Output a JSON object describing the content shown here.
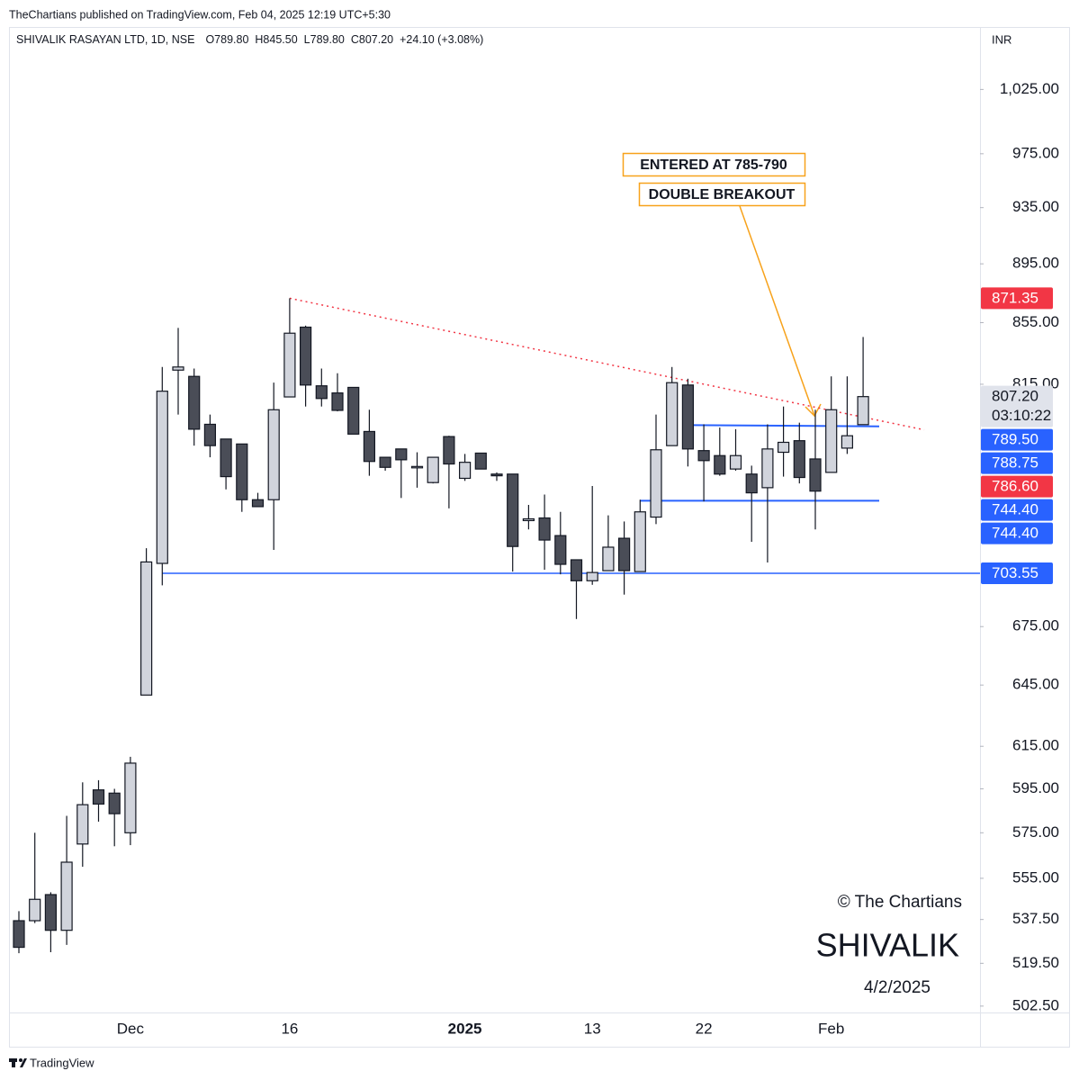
{
  "publisher": "TheChartians published on TradingView.com, Feb 04, 2025 12:19 UTC+5:30",
  "footer_brand": "TradingView",
  "chart_data": {
    "type": "candlestick",
    "title": "SHIVALIK RASAYAN LTD, 1D, NSE",
    "ohlc_header": [
      "O789.80",
      "H845.50",
      "L789.80",
      "C807.20",
      "+24.10 (+3.08%)"
    ],
    "currency": "INR",
    "log_scale": true,
    "categories": [
      null,
      null,
      null,
      null,
      null,
      null,
      null,
      "Dec",
      null,
      null,
      null,
      null,
      null,
      null,
      null,
      null,
      null,
      "16",
      null,
      null,
      null,
      null,
      null,
      null,
      null,
      null,
      null,
      null,
      "2025",
      null,
      null,
      null,
      null,
      null,
      null,
      null,
      "13",
      null,
      null,
      null,
      null,
      null,
      null,
      "22",
      null,
      null,
      null,
      null,
      null,
      null,
      null,
      "Feb",
      null,
      null
    ],
    "open": [
      537,
      537,
      548,
      533,
      570,
      594.5,
      593,
      575,
      640,
      709,
      824,
      820,
      790,
      781,
      778,
      745,
      745,
      807,
      852,
      814,
      809.5,
      813,
      785.6,
      770,
      775,
      764.5,
      755,
      782.5,
      757.5,
      772.5,
      760,
      760,
      733,
      734.5,
      724.5,
      711,
      699.5,
      705,
      723,
      704.5,
      735,
      777,
      814.5,
      774,
      771,
      763,
      760,
      752,
      773,
      780,
      769,
      761,
      775.5,
      789.8
    ],
    "high": [
      541,
      575,
      549,
      582.6,
      598,
      599,
      595,
      610,
      717.4,
      826,
      851.5,
      825,
      796,
      781,
      778,
      749,
      816,
      871.35,
      853,
      825,
      822,
      813,
      799,
      770,
      775,
      773,
      770,
      783,
      772,
      772.5,
      761,
      760,
      742,
      748,
      738,
      711,
      753,
      736,
      732.5,
      745,
      796,
      826,
      818.5,
      790,
      788,
      787,
      765,
      790,
      801,
      791,
      799,
      820,
      820,
      845.5
    ],
    "low": [
      523.6,
      536,
      524,
      527,
      560,
      580,
      569,
      569.5,
      640,
      697,
      796,
      777,
      770,
      751,
      738,
      741,
      716.5,
      807,
      801,
      801,
      798,
      784,
      759,
      762,
      746,
      752,
      754.5,
      740,
      756,
      763,
      756,
      704.5,
      728,
      705.5,
      703,
      679,
      697.3,
      705,
      692,
      704.5,
      731,
      777,
      764.5,
      744,
      759,
      762,
      721,
      709.5,
      758.5,
      754.5,
      728,
      761,
      772,
      789.8
    ],
    "close": [
      526,
      546,
      533,
      562,
      587.7,
      588,
      583.6,
      607,
      709.8,
      810.6,
      826,
      787,
      777,
      758.5,
      745,
      741,
      799,
      848,
      814.5,
      806,
      798.6,
      784,
      767.5,
      764,
      768.5,
      764.5,
      770,
      766,
      767,
      763,
      759,
      718.4,
      734,
      722,
      708.5,
      699.5,
      704,
      718,
      705,
      738,
      774.5,
      816,
      775,
      768,
      760,
      771,
      749,
      775,
      779,
      758,
      750,
      799,
      783,
      807.2
    ],
    "up_color": "#d1d4dc",
    "down_color": "#4a4d57",
    "ylim": [
      500,
      1076
    ],
    "yticks": [
      {
        "value": 1025,
        "label": "1,025.00"
      },
      {
        "value": 975,
        "label": "975.00"
      },
      {
        "value": 935,
        "label": "935.00"
      },
      {
        "value": 895,
        "label": "895.00"
      },
      {
        "value": 855,
        "label": "855.00"
      },
      {
        "value": 815,
        "label": "815.00"
      },
      {
        "value": 675,
        "label": "675.00"
      },
      {
        "value": 645,
        "label": "645.00"
      },
      {
        "value": 615,
        "label": "615.00"
      },
      {
        "value": 595,
        "label": "595.00"
      },
      {
        "value": 575,
        "label": "575.00"
      },
      {
        "value": 555,
        "label": "555.00"
      },
      {
        "value": 537.5,
        "label": "537.50"
      },
      {
        "value": 519.5,
        "label": "519.50"
      },
      {
        "value": 502.5,
        "label": "502.50"
      }
    ],
    "price_tags": [
      {
        "value": 871.35,
        "color": "#f23645"
      },
      {
        "value": 807.2,
        "label": "807.20",
        "sublabel": "03:10:22",
        "color": "#d1d4dc"
      },
      {
        "value": 789.5,
        "label": "789.50",
        "color": "#2962ff"
      },
      {
        "value": 788.75,
        "color": "#2962ff"
      },
      {
        "value": 786.6,
        "label": "786.60",
        "color": "#f23645"
      },
      {
        "value": 744.4,
        "label": "744.40",
        "color": "#2962ff"
      },
      {
        "value": 744.4,
        "label": "744.40",
        "color": "#2962ff"
      },
      {
        "value": 703.55,
        "color": "#2962ff"
      }
    ],
    "annotations": [
      "ENTERED AT 785-790",
      "DOUBLE BREAKOUT"
    ],
    "watermark": {
      "copyright": "© The Chartians",
      "symbol": "SHIVALIK",
      "date": "4/2/2025"
    }
  }
}
